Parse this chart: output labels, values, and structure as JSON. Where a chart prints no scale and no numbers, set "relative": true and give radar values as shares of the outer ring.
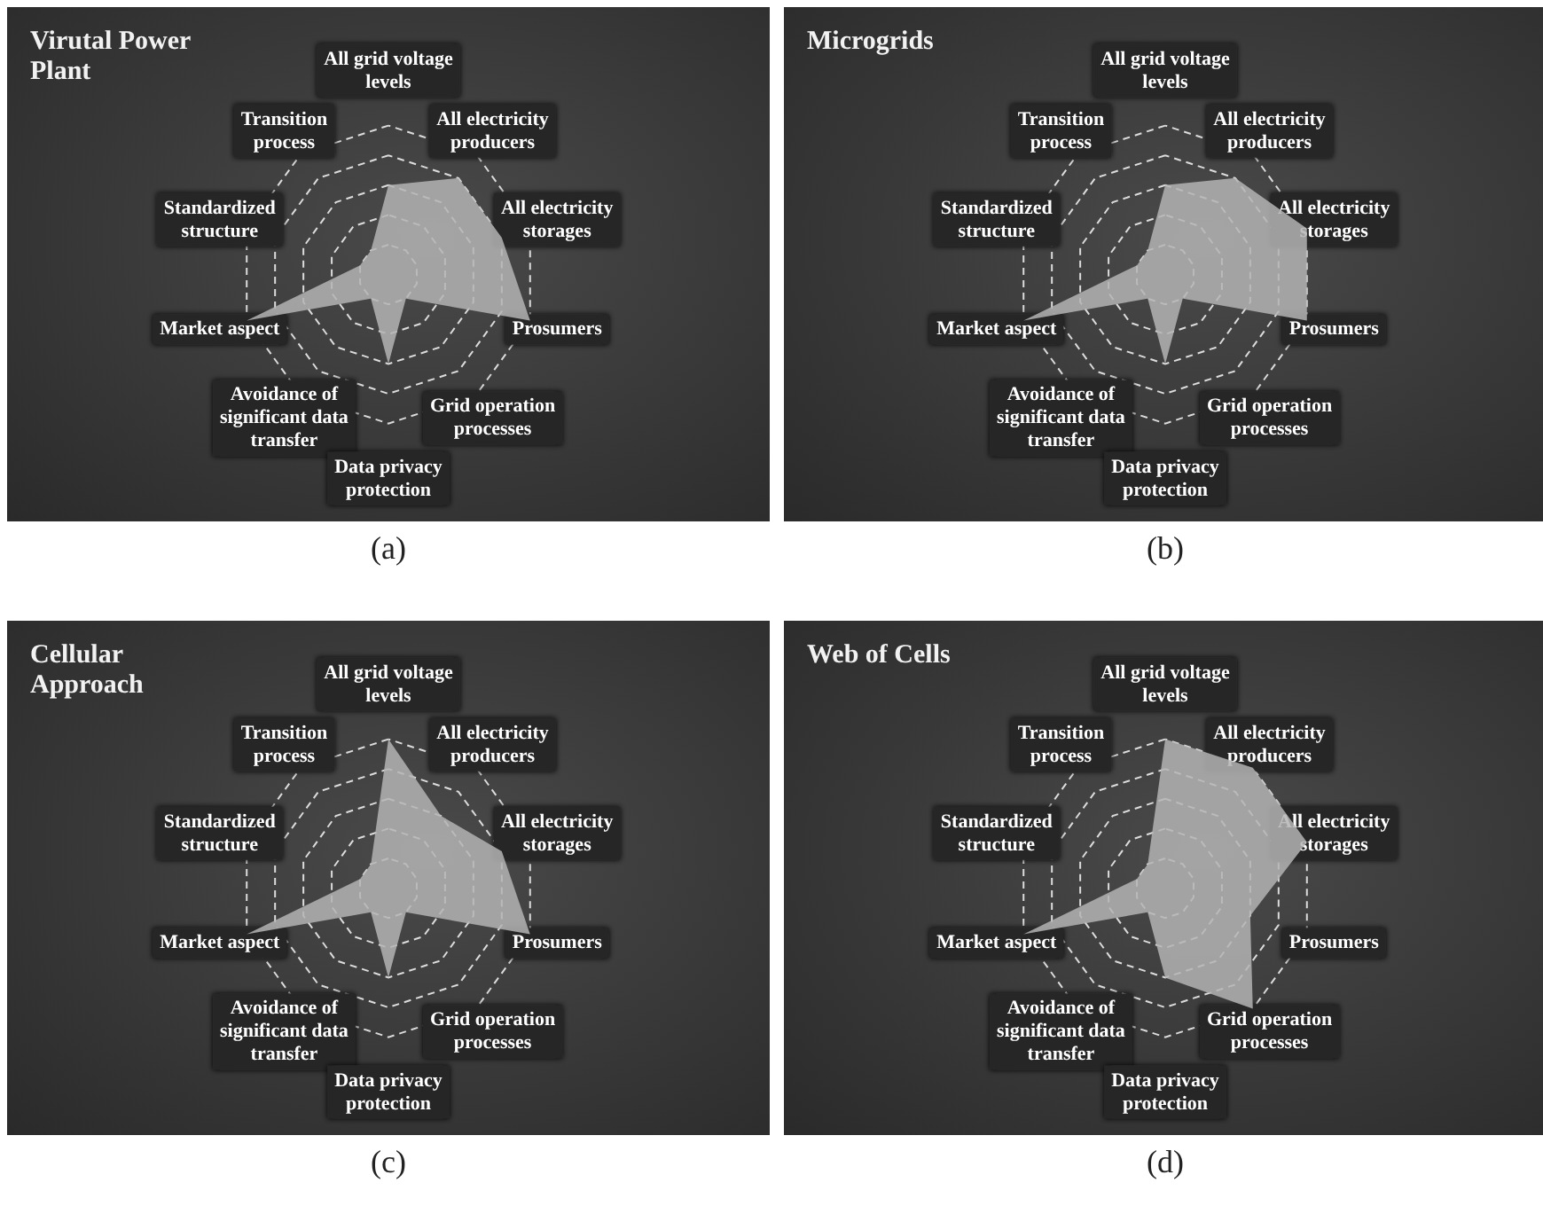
{
  "chart_data": [
    {
      "type": "radar",
      "title": "Virutal Power Plant",
      "relative": true,
      "grid": true,
      "annotations": [
        "(a)"
      ],
      "categories": [
        "All grid voltage levels",
        "All electricity producers",
        "All electricity storages",
        "Prosumers",
        "Grid operation processes",
        "Data privacy protection",
        "Avoidance of significant data transfer",
        "Market aspect",
        "Standardized structure",
        "Transition process"
      ],
      "series": [
        {
          "color": "#b4b4b4",
          "values": [
            0.6,
            0.8,
            0.8,
            1,
            0.2,
            0.6,
            0.2,
            1,
            0.2,
            0.2
          ]
        }
      ]
    },
    {
      "type": "radar",
      "title": "Microgrids",
      "relative": true,
      "grid": true,
      "annotations": [
        "(b)"
      ],
      "categories": [
        "All grid voltage levels",
        "All electricity producers",
        "All electricity storages",
        "Prosumers",
        "Grid operation processes",
        "Data privacy protection",
        "Avoidance of significant data transfer",
        "Market aspect",
        "Standardized structure",
        "Transition process"
      ],
      "series": [
        {
          "color": "#b4b4b4",
          "values": [
            0.6,
            0.8,
            1,
            1,
            0.2,
            0.6,
            0.2,
            1,
            0.2,
            0.2
          ]
        }
      ]
    },
    {
      "type": "radar",
      "title": "Cellular Approach",
      "relative": true,
      "grid": true,
      "annotations": [
        "(c)"
      ],
      "categories": [
        "All grid voltage levels",
        "All electricity producers",
        "All electricity storages",
        "Prosumers",
        "Grid operation processes",
        "Data privacy protection",
        "Avoidance of significant data transfer",
        "Market aspect",
        "Standardized structure",
        "Transition process"
      ],
      "series": [
        {
          "color": "#b4b4b4",
          "values": [
            1,
            0.6,
            0.8,
            1,
            0.2,
            0.6,
            0.2,
            1,
            0.2,
            0.2
          ]
        }
      ]
    },
    {
      "type": "radar",
      "title": "Web of Cells",
      "relative": true,
      "grid": true,
      "annotations": [
        "(d)"
      ],
      "categories": [
        "All grid voltage levels",
        "All electricity producers",
        "All electricity storages",
        "Prosumers",
        "Grid operation processes",
        "Data privacy protection",
        "Avoidance of significant data transfer",
        "Market aspect",
        "Standardized structure",
        "Transition process"
      ],
      "series": [
        {
          "color": "#b4b4b4",
          "values": [
            1,
            1,
            1,
            0.6,
            1,
            0.6,
            0.2,
            1,
            0.2,
            0.2
          ]
        }
      ]
    }
  ]
}
